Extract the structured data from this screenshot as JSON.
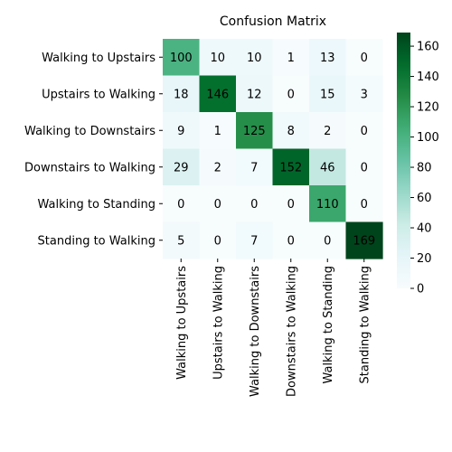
{
  "chart_data": {
    "type": "heatmap",
    "title": "Confusion Matrix",
    "row_labels": [
      "Walking to Upstairs",
      "Upstairs to Walking",
      "Walking to Downstairs",
      "Downstairs to Walking",
      "Walking to Standing",
      "Standing to Walking"
    ],
    "col_labels": [
      "Walking to Upstairs",
      "Upstairs to Walking",
      "Walking to Downstairs",
      "Downstairs to Walking",
      "Walking to Standing",
      "Standing to Walking"
    ],
    "values": [
      [
        100,
        10,
        10,
        1,
        13,
        0
      ],
      [
        18,
        146,
        12,
        0,
        15,
        3
      ],
      [
        9,
        1,
        125,
        8,
        2,
        0
      ],
      [
        29,
        2,
        7,
        152,
        46,
        0
      ],
      [
        0,
        0,
        0,
        0,
        110,
        0
      ],
      [
        5,
        0,
        7,
        0,
        0,
        169
      ]
    ],
    "colorbar": {
      "range": [
        0,
        169
      ],
      "ticks": [
        0,
        20,
        40,
        60,
        80,
        100,
        120,
        140,
        160
      ],
      "colormap": "Greens",
      "colors": [
        "#f7fcfd",
        "#e5f5f9",
        "#ccece6",
        "#99d8c9",
        "#66c2a4",
        "#41ae76",
        "#238b45",
        "#006d2c",
        "#00441b"
      ]
    }
  }
}
